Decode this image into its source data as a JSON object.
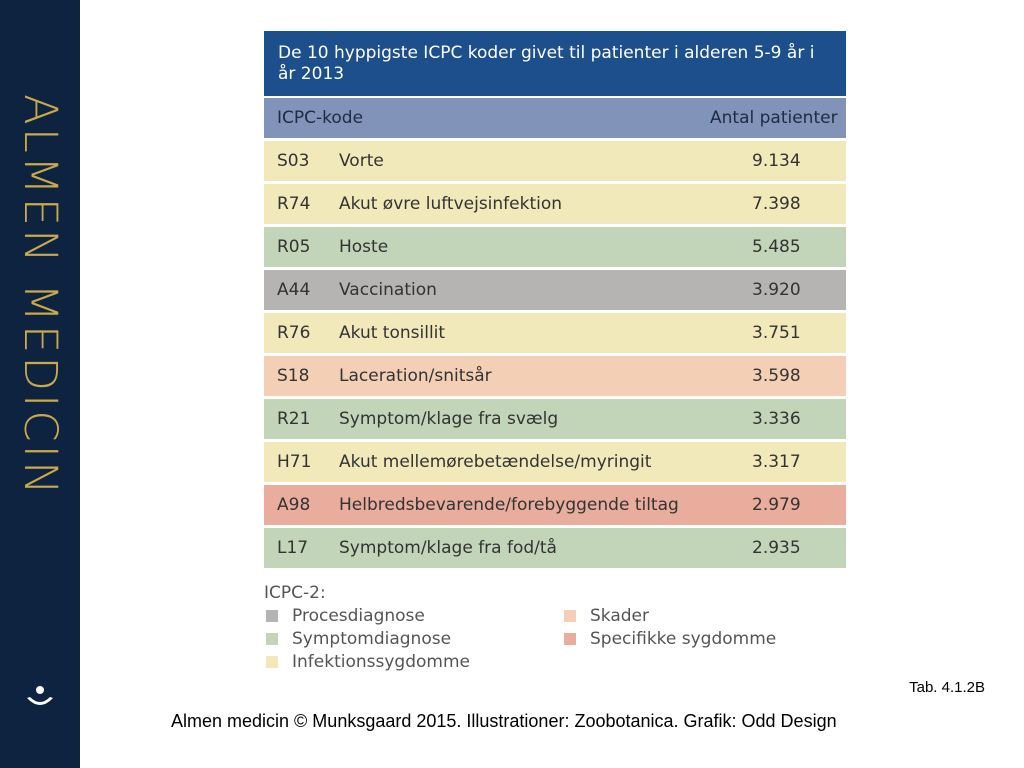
{
  "sidebar": {
    "brand": "ALMEN MEDICIN"
  },
  "table": {
    "title": "De 10 hyppigste ICPC koder givet til patienter i alderen 5-9 år i år 2013",
    "header": [
      "ICPC-kode",
      "Antal patienter"
    ],
    "rows": [
      {
        "code": "S03",
        "label": "Vorte",
        "count": "9.134",
        "color": "#f1e9ba"
      },
      {
        "code": "R74",
        "label": "Akut øvre luftvejsinfektion",
        "count": "7.398",
        "color": "#f1e9ba"
      },
      {
        "code": "R05",
        "label": "Hoste",
        "count": "5.485",
        "color": "#c2d5b9"
      },
      {
        "code": "A44",
        "label": "Vaccination",
        "count": "3.920",
        "color": "#b5b4b3"
      },
      {
        "code": "R76",
        "label": "Akut tonsillit",
        "count": "3.751",
        "color": "#f1e9ba"
      },
      {
        "code": "S18",
        "label": "Laceration/snitsår",
        "count": "3.598",
        "color": "#f3cfb6"
      },
      {
        "code": "R21",
        "label": "Symptom/klage fra svælg",
        "count": "3.336",
        "color": "#c2d5b9"
      },
      {
        "code": "H71",
        "label": "Akut mellemørebetændelse/myringit",
        "count": "3.317",
        "color": "#f1e9ba"
      },
      {
        "code": "A98",
        "label": "Helbredsbevarende/forebyggende tiltag",
        "count": "2.979",
        "color": "#e9ad9e"
      },
      {
        "code": "L17",
        "label": "Symptom/klage fra fod/tå",
        "count": "2.935",
        "color": "#c2d5b9"
      }
    ]
  },
  "legend": {
    "title": "ICPC-2:",
    "items": [
      {
        "label": "Procesdiagnose",
        "color": "#b5b4b3"
      },
      {
        "label": "Symptomdiagnose",
        "color": "#c2d5b9"
      },
      {
        "label": "Infektionssygdomme",
        "color": "#f1e9ba"
      },
      {
        "label": "Skader",
        "color": "#f3cfb6"
      },
      {
        "label": "Specifikke sygdomme",
        "color": "#e9ad9e"
      }
    ]
  },
  "footer": {
    "ref": "Tab. 4.1.2B",
    "credit": "Almen medicin © Munksgaard 2015. Illustrationer: Zoobotanica. Grafik: Odd Design"
  }
}
